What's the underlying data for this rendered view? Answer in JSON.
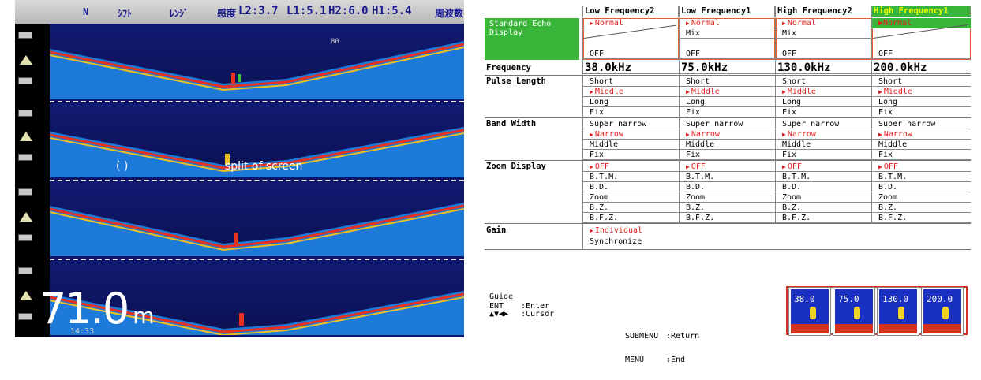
{
  "echo": {
    "status": {
      "mode_n": "N",
      "shift": "ｼﾌﾄ",
      "range": "ﾚﾝｼﾞ",
      "gain_label": "感度",
      "l2": "L2:3.7",
      "l1": "L1:5.1",
      "h2": "H2:6.0",
      "h1": "H1:5.4",
      "menu_btn": "周波数"
    },
    "split_caption_left": "( ) ",
    "split_caption_right": "split of screen",
    "depth_value": "71.0",
    "depth_unit": "m",
    "depth_sub": "14:33"
  },
  "menu": {
    "headers": [
      "Low Frequency2",
      "Low Frequency1",
      "High Frequency2",
      "High Frequency1"
    ],
    "standard_echo_display_label": "Standard Echo Display",
    "standard_echo_options": {
      "normal": "Normal",
      "mix": "Mix",
      "off": "OFF"
    },
    "frequency_label": "Frequency",
    "frequencies": [
      "38.0kHz",
      "75.0kHz",
      "130.0kHz",
      "200.0kHz"
    ],
    "pulse_length_label": "Pulse Length",
    "pulse_length_options": [
      "Short",
      "Middle",
      "Long",
      "Fix"
    ],
    "band_width_label": "Band Width",
    "band_width_options": [
      "Super narrow",
      "Narrow",
      "Middle",
      "Fix"
    ],
    "zoom_display_label": "Zoom Display",
    "zoom_display_options": [
      "OFF",
      "B.T.M.",
      "B.D.",
      "Zoom",
      "B.Z.",
      "B.F.Z."
    ],
    "gain_label": "Gain",
    "gain_options": [
      "Individual",
      "Synchronize"
    ],
    "guide": {
      "title": "Guide",
      "ent_key": "ENT",
      "ent_desc": ":Enter",
      "cursor_key": "▲▼◀▶",
      "cursor_desc": ":Cursor",
      "submenu_key": "SUBMENU",
      "submenu_desc": ":Return",
      "menu_key": "MENU",
      "menu_desc": ":End"
    },
    "mini_freqs": [
      "38.0",
      "75.0",
      "130.0",
      "200.0"
    ]
  },
  "colors": {
    "menu_highlight": "#39b539",
    "selected_text": "#e02020",
    "echo_water": "#0c1466"
  }
}
